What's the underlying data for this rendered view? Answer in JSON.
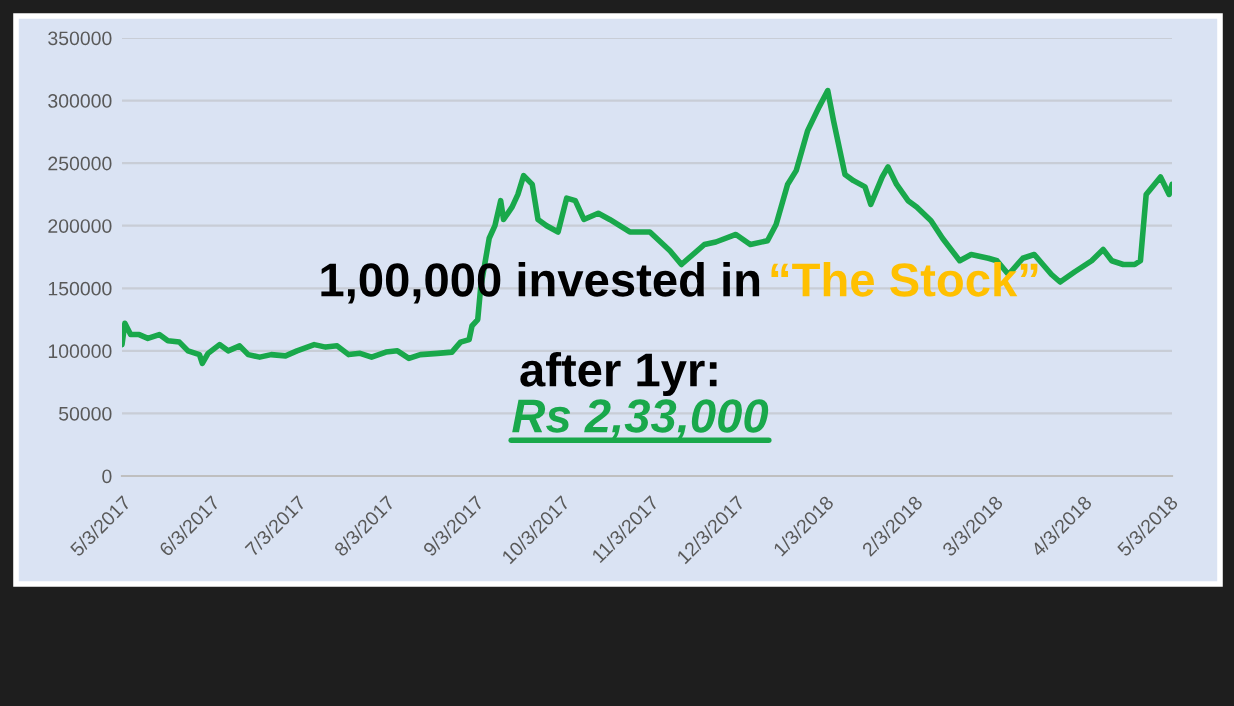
{
  "chart_data": {
    "type": "line",
    "annotations": [
      "1,00,000 invested in",
      "“The Stock”",
      "after 1yr:",
      "Rs 2,33,000"
    ],
    "x": [
      "2017-05-03",
      "2017-05-04",
      "2017-05-06",
      "2017-05-09",
      "2017-05-12",
      "2017-05-16",
      "2017-05-19",
      "2017-05-23",
      "2017-05-26",
      "2017-05-30",
      "2017-05-31",
      "2017-06-02",
      "2017-06-06",
      "2017-06-09",
      "2017-06-13",
      "2017-06-16",
      "2017-06-20",
      "2017-06-24",
      "2017-06-29",
      "2017-07-03",
      "2017-07-09",
      "2017-07-13",
      "2017-07-17",
      "2017-07-21",
      "2017-07-25",
      "2017-07-29",
      "2017-08-03",
      "2017-08-07",
      "2017-08-11",
      "2017-08-15",
      "2017-08-21",
      "2017-08-26",
      "2017-08-29",
      "2017-09-01",
      "2017-09-02",
      "2017-09-04",
      "2017-09-05",
      "2017-09-08",
      "2017-09-10",
      "2017-09-12",
      "2017-09-13",
      "2017-09-16",
      "2017-09-18",
      "2017-09-20",
      "2017-09-23",
      "2017-09-25",
      "2017-09-28",
      "2017-10-02",
      "2017-10-05",
      "2017-10-08",
      "2017-10-11",
      "2017-10-16",
      "2017-10-20",
      "2017-10-27",
      "2017-11-03",
      "2017-11-10",
      "2017-11-14",
      "2017-11-18",
      "2017-11-22",
      "2017-11-26",
      "2017-12-03",
      "2017-12-08",
      "2017-12-14",
      "2017-12-17",
      "2017-12-21",
      "2017-12-24",
      "2017-12-28",
      "2018-01-01",
      "2018-01-04",
      "2018-01-06",
      "2018-01-10",
      "2018-01-13",
      "2018-01-17",
      "2018-01-19",
      "2018-01-23",
      "2018-01-25",
      "2018-01-28",
      "2018-02-01",
      "2018-02-04",
      "2018-02-09",
      "2018-02-13",
      "2018-02-19",
      "2018-02-23",
      "2018-03-01",
      "2018-03-04",
      "2018-03-08",
      "2018-03-13",
      "2018-03-17",
      "2018-03-20",
      "2018-03-23",
      "2018-03-26",
      "2018-03-31",
      "2018-04-06",
      "2018-04-10",
      "2018-04-13",
      "2018-04-17",
      "2018-04-21",
      "2018-04-23",
      "2018-04-25",
      "2018-04-30",
      "2018-05-03",
      "2018-05-04"
    ],
    "series": [
      {
        "color": "#19a84b",
        "values": [
          105000,
          122000,
          113000,
          113000,
          110000,
          113000,
          108000,
          107000,
          100000,
          97000,
          90000,
          98000,
          105000,
          100000,
          104000,
          97000,
          95000,
          97000,
          96000,
          100000,
          105000,
          103000,
          104000,
          97000,
          98000,
          95000,
          99000,
          100000,
          94000,
          97000,
          98000,
          99000,
          107000,
          109000,
          120000,
          125000,
          150000,
          190000,
          200000,
          220000,
          205000,
          215000,
          225000,
          240000,
          233000,
          205000,
          200000,
          195000,
          222000,
          220000,
          205000,
          210000,
          205000,
          195000,
          195000,
          180000,
          169000,
          177000,
          185000,
          187000,
          193000,
          185000,
          188000,
          201000,
          233000,
          244000,
          276000,
          295000,
          308000,
          284000,
          241000,
          236000,
          231000,
          217000,
          239000,
          247000,
          233000,
          220000,
          215000,
          204000,
          190000,
          172000,
          177000,
          174000,
          172000,
          161000,
          174000,
          177000,
          169000,
          161000,
          155000,
          163000,
          172000,
          181000,
          172000,
          169000,
          169000,
          172000,
          225000,
          239000,
          225000,
          233000
        ]
      }
    ],
    "xlim": [
      "2017-05-03",
      "2018-05-04"
    ],
    "xticks": [
      {
        "value": "2017-05-03",
        "label": "5/3/2017"
      },
      {
        "value": "2017-06-03",
        "label": "6/3/2017"
      },
      {
        "value": "2017-07-03",
        "label": "7/3/2017"
      },
      {
        "value": "2017-08-03",
        "label": "8/3/2017"
      },
      {
        "value": "2017-09-03",
        "label": "9/3/2017"
      },
      {
        "value": "2017-10-03",
        "label": "10/3/2017"
      },
      {
        "value": "2017-11-03",
        "label": "11/3/2017"
      },
      {
        "value": "2017-12-03",
        "label": "12/3/2017"
      },
      {
        "value": "2018-01-03",
        "label": "1/3/2018"
      },
      {
        "value": "2018-02-03",
        "label": "2/3/2018"
      },
      {
        "value": "2018-03-03",
        "label": "3/3/2018"
      },
      {
        "value": "2018-04-03",
        "label": "4/3/2018"
      },
      {
        "value": "2018-05-03",
        "label": "5/3/2018"
      }
    ],
    "ylim": [
      0,
      350000
    ],
    "yticks": [
      0,
      50000,
      100000,
      150000,
      200000,
      250000,
      300000,
      350000
    ],
    "grid": "y",
    "marker": "none",
    "line_style": "solid"
  }
}
